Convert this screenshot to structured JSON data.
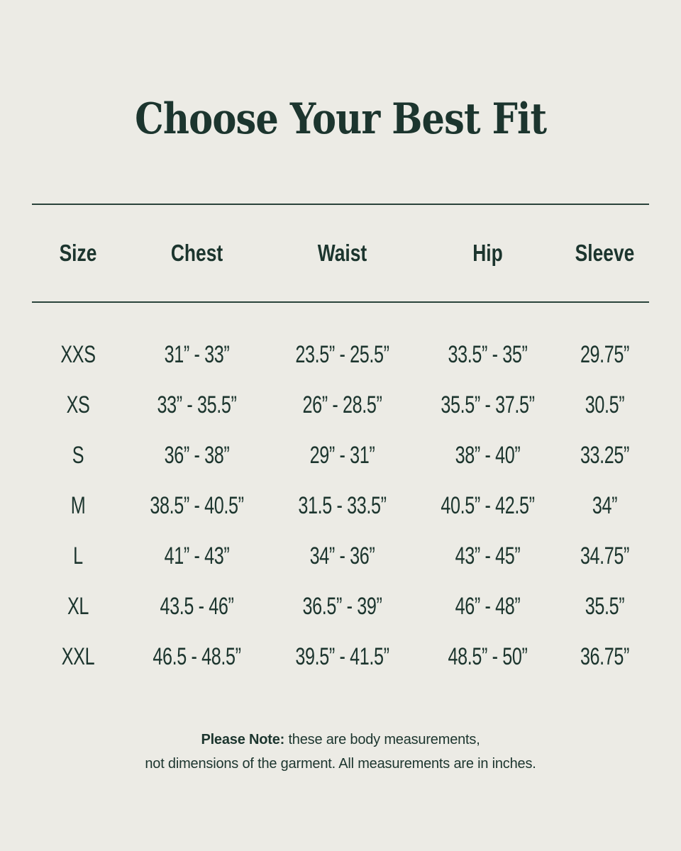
{
  "title": "Choose Your Best Fit",
  "colors": {
    "background": "#ECEBE5",
    "text": "#1C352E",
    "rule": "#2A433B"
  },
  "chart_data": {
    "type": "table",
    "title": "Choose Your Best Fit",
    "columns": [
      "Size",
      "Chest",
      "Waist",
      "Hip",
      "Sleeve"
    ],
    "rows": [
      [
        "XXS",
        "31” - 33”",
        "23.5” - 25.5”",
        "33.5” - 35”",
        "29.75”"
      ],
      [
        "XS",
        "33” - 35.5”",
        "26” - 28.5”",
        "35.5” - 37.5”",
        "30.5”"
      ],
      [
        "S",
        "36” - 38”",
        "29” - 31”",
        "38” - 40”",
        "33.25”"
      ],
      [
        "M",
        "38.5” - 40.5”",
        "31.5 - 33.5”",
        "40.5” - 42.5”",
        "34”"
      ],
      [
        "L",
        "41” - 43”",
        "34” - 36”",
        "43” - 45”",
        "34.75”"
      ],
      [
        "XL",
        "43.5 - 46”",
        "36.5” - 39”",
        "46” - 48”",
        "35.5”"
      ],
      [
        "XXL",
        "46.5 - 48.5”",
        "39.5” - 41.5”",
        "48.5” - 50”",
        "36.75”"
      ]
    ],
    "layout": "size chart table, centered columns, horizontal rules above and below header row",
    "units": "inches"
  },
  "note": {
    "label": "Please Note:",
    "text1": " these are body measurements,",
    "text2": "not dimensions of the garment. All measurements are in inches."
  }
}
